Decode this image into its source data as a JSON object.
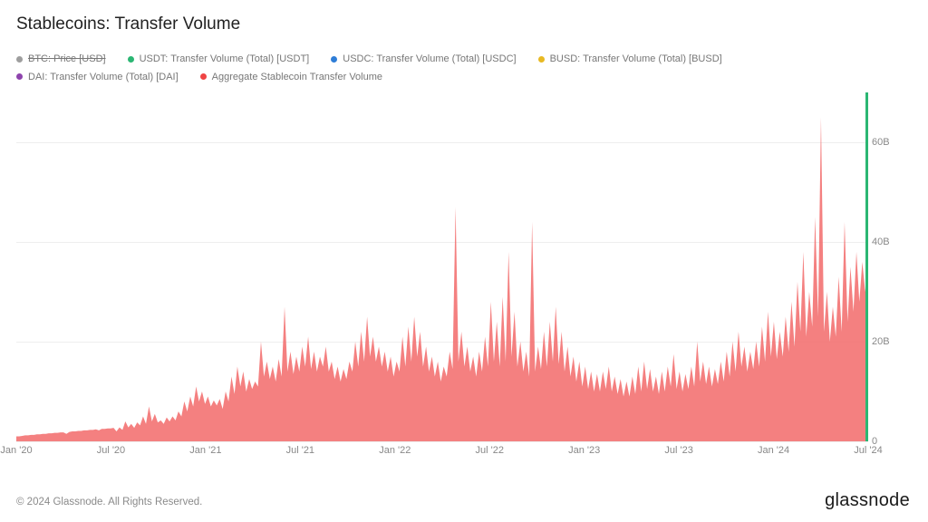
{
  "title": "Stablecoins: Transfer Volume",
  "legend": {
    "row1": [
      {
        "label": "BTC: Price [USD]",
        "color": "#9e9e9e",
        "strike": true
      },
      {
        "label": "USDT: Transfer Volume (Total) [USDT]",
        "color": "#2bb673",
        "strike": false
      },
      {
        "label": "USDC: Transfer Volume (Total) [USDC]",
        "color": "#2e7dd7",
        "strike": false
      },
      {
        "label": "BUSD: Transfer Volume (Total) [BUSD]",
        "color": "#e8b923",
        "strike": false
      }
    ],
    "row2": [
      {
        "label": "DAI: Transfer Volume (Total) [DAI]",
        "color": "#8e44ad",
        "strike": false
      },
      {
        "label": "Aggregate Stablecoin Transfer Volume",
        "color": "#ef4444",
        "strike": false
      }
    ]
  },
  "chart": {
    "type": "area",
    "background_color": "#ffffff",
    "grid_color": "#eeeeee",
    "area_color": "#f26a6a",
    "area_opacity": 0.85,
    "usdt_bar_color": "#2bb673",
    "usdt_bar_value": 70,
    "ylim": [
      0,
      70
    ],
    "yticks": [
      0,
      20,
      40,
      60
    ],
    "ytick_labels": [
      "0",
      "20B",
      "40B",
      "60B"
    ],
    "axis_fontsize": 11,
    "x_ticks": [
      "Jan '20",
      "Jul '20",
      "Jan '21",
      "Jul '21",
      "Jan '22",
      "Jul '22",
      "Jan '23",
      "Jul '23",
      "Jan '24",
      "Jul '24"
    ],
    "series_aggregate": [
      1.0,
      1.0,
      1.1,
      1.2,
      1.2,
      1.3,
      1.3,
      1.4,
      1.4,
      1.5,
      1.5,
      1.6,
      1.6,
      1.7,
      1.7,
      1.8,
      1.8,
      1.5,
      1.9,
      2.0,
      2.0,
      2.1,
      2.1,
      2.2,
      2.2,
      2.3,
      2.3,
      2.4,
      2.2,
      2.5,
      2.5,
      2.6,
      2.6,
      2.7,
      2.0,
      2.8,
      2.3,
      4.0,
      2.8,
      3.5,
      2.7,
      3.8,
      3.2,
      5.0,
      3.5,
      7.0,
      4.0,
      5.5,
      3.8,
      4.2,
      3.5,
      4.8,
      4.0,
      5.0,
      4.2,
      6.0,
      5.0,
      8.0,
      6.0,
      9.0,
      7.0,
      11.0,
      8.0,
      10.0,
      7.5,
      9.0,
      7.0,
      8.2,
      7.2,
      8.5,
      6.5,
      10.0,
      8.0,
      13.0,
      9.5,
      15.0,
      11.0,
      14.0,
      10.0,
      12.5,
      10.5,
      12.0,
      11.0,
      20.0,
      13.0,
      16.0,
      12.5,
      15.0,
      12.0,
      16.5,
      13.0,
      27.0,
      14.0,
      18.0,
      13.5,
      17.0,
      14.0,
      19.0,
      15.0,
      21.0,
      14.5,
      18.0,
      14.0,
      17.0,
      15.0,
      19.0,
      14.0,
      16.0,
      12.5,
      15.0,
      12.0,
      14.5,
      12.5,
      16.0,
      14.0,
      20.0,
      15.0,
      22.0,
      16.0,
      25.0,
      17.0,
      21.0,
      16.0,
      19.0,
      15.0,
      18.0,
      14.0,
      17.0,
      13.0,
      16.0,
      14.0,
      21.0,
      15.0,
      23.0,
      16.0,
      25.0,
      17.0,
      22.0,
      15.0,
      19.0,
      14.0,
      17.0,
      13.0,
      16.0,
      12.0,
      15.0,
      13.0,
      18.0,
      14.5,
      47.0,
      16.0,
      22.0,
      15.0,
      19.0,
      14.0,
      17.0,
      13.0,
      18.0,
      14.0,
      21.0,
      15.0,
      28.0,
      16.0,
      24.0,
      15.0,
      29.0,
      16.0,
      38.0,
      17.0,
      26.0,
      15.0,
      20.0,
      14.0,
      18.0,
      13.0,
      44.0,
      14.0,
      19.0,
      14.5,
      22.0,
      15.0,
      24.0,
      16.0,
      27.0,
      15.5,
      22.0,
      14.0,
      19.0,
      13.0,
      17.0,
      12.0,
      16.0,
      11.0,
      15.0,
      10.5,
      14.0,
      10.0,
      13.5,
      10.0,
      14.0,
      10.5,
      15.0,
      10.0,
      13.0,
      9.5,
      12.5,
      9.0,
      12.0,
      9.0,
      13.0,
      9.5,
      15.0,
      10.0,
      16.0,
      10.5,
      14.5,
      10.0,
      13.0,
      9.5,
      14.0,
      10.0,
      15.0,
      11.0,
      17.5,
      10.5,
      14.0,
      10.0,
      13.5,
      10.5,
      15.0,
      11.0,
      20.0,
      12.0,
      16.0,
      11.5,
      15.0,
      11.0,
      14.5,
      11.5,
      16.0,
      12.0,
      18.0,
      13.0,
      20.0,
      14.0,
      22.0,
      15.0,
      19.0,
      14.0,
      18.0,
      14.5,
      20.0,
      15.0,
      23.0,
      16.0,
      26.0,
      17.0,
      24.0,
      16.5,
      22.0,
      17.0,
      25.0,
      18.0,
      28.0,
      19.0,
      32.0,
      22.0,
      38.0,
      21.0,
      30.0,
      23.0,
      45.0,
      25.0,
      65.0,
      22.0,
      30.0,
      20.0,
      27.0,
      21.0,
      33.0,
      22.0,
      44.0,
      24.0,
      35.0,
      26.0,
      38.0,
      28.0,
      36.0,
      30.0,
      38.0
    ]
  },
  "footer": "© 2024 Glassnode. All Rights Reserved.",
  "brand": "glassnode"
}
